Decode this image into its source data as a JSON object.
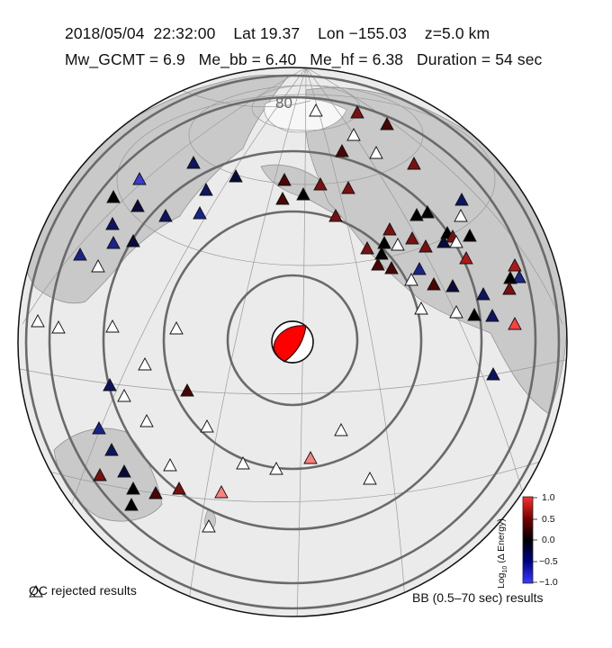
{
  "header": {
    "date": "2018/05/04",
    "time": "22:32:00",
    "lat_label": "Lat",
    "lat": "19.37",
    "lon_label": "Lon",
    "lon": "−155.03",
    "depth": "z=5.0 km",
    "mw_label": "Mw_GCMT",
    "mw": "6.9",
    "me_bb_label": "Me_bb",
    "me_bb": "6.40",
    "me_hf_label": "Me_hf",
    "me_hf": "6.38",
    "duration_label": "Duration",
    "duration": "54 sec"
  },
  "map": {
    "latitude_label": "80",
    "focal_mechanism_color": "#ff0000",
    "distance_rings_deg": [
      20,
      40,
      60,
      80,
      90
    ]
  },
  "colorbar": {
    "title_prefix": "Log",
    "title_sub": "10",
    "title_suffix": " (Δ Energy)",
    "ticks": [
      "1.0",
      "0.5",
      "0.0",
      "−0.5",
      "−1.0"
    ],
    "tick_values": [
      1.0,
      0.5,
      0.0,
      -0.5,
      -1.0
    ],
    "colors": [
      "#ff2a2a",
      "#7a0000",
      "#000000",
      "#000077",
      "#2a2aff"
    ]
  },
  "legend": {
    "qc_label": "QC rejected results",
    "bb_label": "BB (0.5–70 sec) results"
  }
}
